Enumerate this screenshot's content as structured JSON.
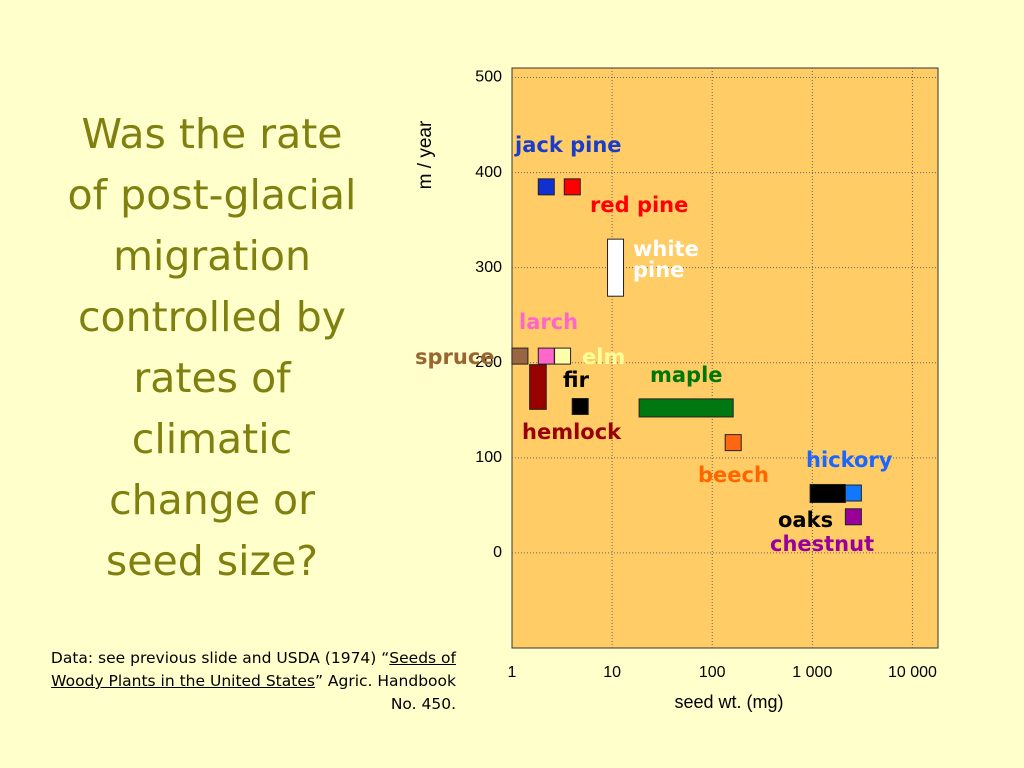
{
  "title_lines": [
    "Was the rate",
    "of post-glacial",
    "migration",
    "controlled by",
    "rates of",
    "climatic",
    "change or",
    "seed size?"
  ],
  "footnote": {
    "line1": "Data: see previous slide and",
    "prefix": "USDA (1974) “",
    "book": "Seeds of Woody Plants in the United States",
    "suffix": "” Agric. Handbook No. 450."
  },
  "chart_data": {
    "type": "scatter",
    "x_label": "seed wt. (mg)",
    "y_label": "m / year",
    "xlog": true,
    "xlim": [
      1,
      18000
    ],
    "ylim": [
      -100,
      510
    ],
    "xticks": [
      1,
      10,
      100,
      {
        "value": 1000,
        "label": "1 000"
      },
      {
        "value": 10000,
        "label": "10 000"
      }
    ],
    "yticks": [
      0,
      100,
      200,
      300,
      400,
      500
    ],
    "grid": true,
    "series": [
      {
        "name": "jack pine",
        "color": "#1030d0",
        "x": 2.2,
        "y": 385
      },
      {
        "name": "red pine",
        "color": "#ff0000",
        "x": 4,
        "y": 385
      },
      {
        "name": "white pine",
        "color": "#ffffff",
        "x_range": [
          9,
          13
        ],
        "y_range": [
          270,
          330
        ]
      },
      {
        "name": "larch",
        "color": "#ff66cc",
        "x": 2.2,
        "y": 207
      },
      {
        "name": "spruce",
        "color": "#996644",
        "x": 1.2,
        "y": 207
      },
      {
        "name": "elm",
        "color": "#ffffaa",
        "x": 3.2,
        "y": 207
      },
      {
        "name": "fir",
        "color": "#000000",
        "x": 4.8,
        "y": 154
      },
      {
        "name": "maple",
        "color": "#007711",
        "x_range": [
          18.6,
          162
        ],
        "y_range": [
          143,
          162
        ]
      },
      {
        "name": "hemlock",
        "color": "#990000",
        "x_range": [
          1.5,
          2.2
        ],
        "y_range": [
          151,
          198
        ]
      },
      {
        "name": "beech",
        "color": "#ff6611",
        "x": 162,
        "y": 116
      },
      {
        "name": "hickory",
        "color": "#1177ff",
        "x": 2570,
        "y": 63
      },
      {
        "name": "oaks",
        "color": "#000000",
        "x_range": [
          950,
          2140
        ],
        "y_range": [
          53,
          72
        ]
      },
      {
        "name": "chestnut",
        "color": "#990099",
        "x": 2570,
        "y": 38
      }
    ]
  }
}
